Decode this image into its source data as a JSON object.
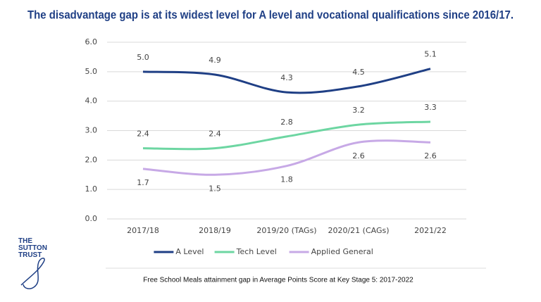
{
  "chart_data": {
    "type": "line",
    "title": "The disadvantage gap is at its widest level for A level and vocational qualifications since 2016/17.",
    "caption": "Free School Meals attainment gap in Average Points Score at Key Stage 5: 2017-2022",
    "logo": "THE SUTTON TRUST",
    "categories": [
      "2017/18",
      "2018/19",
      "2019/20 (TAGs)",
      "2020/21 (CAGs)",
      "2021/22"
    ],
    "series": [
      {
        "name": "A Level",
        "color": "#1f3f85",
        "values": [
          5.0,
          4.9,
          4.3,
          4.5,
          5.1
        ],
        "value_labels": [
          "5.0",
          "4.9",
          "4.3",
          "4.5",
          "5.1"
        ]
      },
      {
        "name": "Tech Level",
        "color": "#6dd6a2",
        "values": [
          2.4,
          2.4,
          2.8,
          3.2,
          3.3
        ],
        "value_labels": [
          "2.4",
          "2.4",
          "2.8",
          "3.2",
          "3.3"
        ]
      },
      {
        "name": "Applied General",
        "color": "#c7a9e6",
        "values": [
          1.7,
          1.5,
          1.8,
          2.6,
          2.6
        ],
        "value_labels": [
          "1.7",
          "1.5",
          "1.8",
          "2.6",
          "2.6"
        ]
      }
    ],
    "ylim": [
      0,
      6
    ],
    "yticks": [
      {
        "value": 0,
        "label": "0.0"
      },
      {
        "value": 1,
        "label": "1.0"
      },
      {
        "value": 2,
        "label": "2.0"
      },
      {
        "value": 3,
        "label": "3.0"
      },
      {
        "value": 4,
        "label": "4.0"
      },
      {
        "value": 5,
        "label": "5.0"
      },
      {
        "value": 6,
        "label": "6.0"
      }
    ],
    "grid": true,
    "legend": "bottom"
  }
}
